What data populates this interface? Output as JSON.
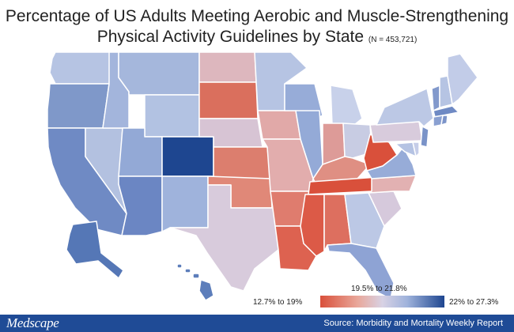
{
  "title": {
    "line1": "Percentage of US Adults Meeting Aerobic and Muscle-Strengthening",
    "line2": "Physical Activity Guidelines by State",
    "sample": "(N = 453,721)"
  },
  "legend": {
    "low_label": "12.7% to 19%",
    "mid_label": "19.5% to 21.8%",
    "high_label": "22% to 27.3%",
    "colors": {
      "low": "#d9503b",
      "mid": "#d8d2e4",
      "high": "#1e4690"
    }
  },
  "footer": {
    "logo": "Medscape",
    "source": "Source: Morbidity and Mortality Weekly Report"
  },
  "state_colors": {
    "WA": "#b6c4e3",
    "OR": "#7f98c9",
    "CA": "#6f8ac4",
    "NV": "#b3c1e0",
    "ID": "#a3b5dc",
    "MT": "#a5b7dc",
    "WY": "#b2c2e2",
    "UT": "#93a9d6",
    "AZ": "#6b86c3",
    "CO": "#1e4690",
    "NM": "#9fb3dc",
    "ND": "#ddb7be",
    "SD": "#da6f5d",
    "NE": "#d7c4d4",
    "KS": "#dc7e6e",
    "OK": "#e08878",
    "TX": "#d8cbdc",
    "MN": "#b6c4e3",
    "IA": "#e1a9a8",
    "MO": "#e2adad",
    "AR": "#df7c6e",
    "LA": "#dd6250",
    "WI": "#97acd8",
    "IL": "#94aad7",
    "MI": "#c8d1ea",
    "IN": "#dd9b98",
    "OH": "#c8cce3",
    "KY": "#df8f83",
    "TN": "#d9503b",
    "MS": "#dc5a47",
    "AL": "#dd6f5f",
    "GA": "#bcc8e5",
    "FL": "#8ea3d4",
    "SC": "#d6c9dc",
    "NC": "#e2b1b2",
    "VA": "#97acd8",
    "WV": "#d9503b",
    "PA": "#d8cbdc",
    "NY": "#bcc8e5",
    "MD": "#b5c3e3",
    "DE": "#c5cde8",
    "NJ": "#7a93c8",
    "CT": "#8aa0d1",
    "RI": "#7c94c9",
    "MA": "#6f8ac4",
    "VT": "#8299cc",
    "NH": "#b6c4e3",
    "ME": "#c2cce8",
    "AK": "#5577b6",
    "HI": "#5d7ebb"
  }
}
